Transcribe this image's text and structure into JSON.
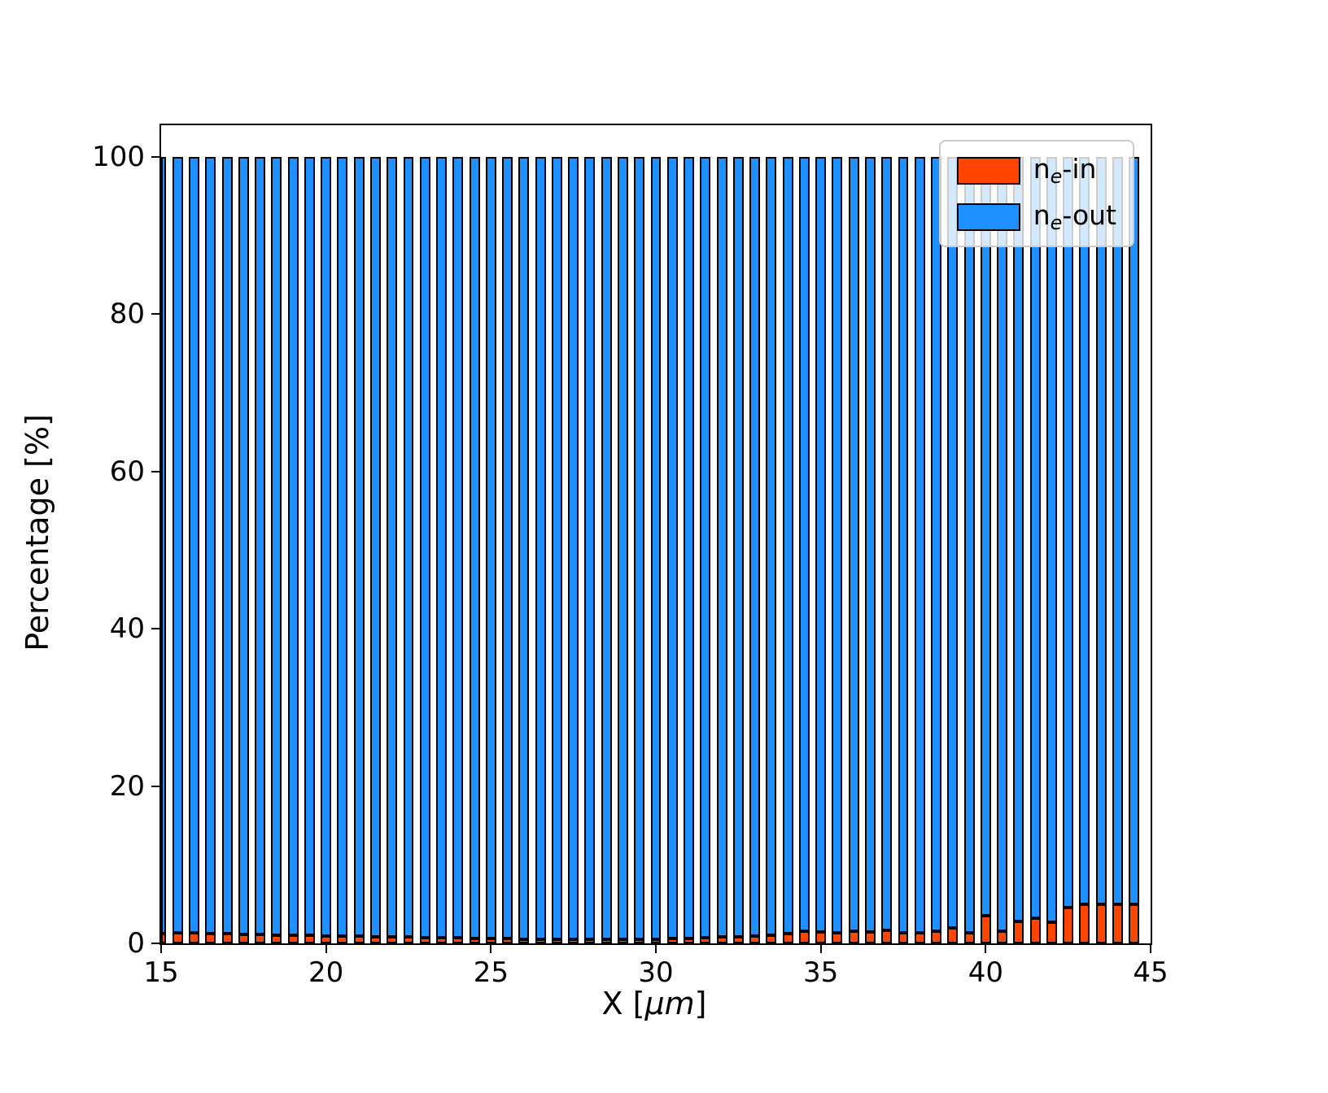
{
  "chart_data": {
    "type": "bar",
    "stacked": true,
    "x": [
      15.0,
      15.5,
      16.0,
      16.5,
      17.0,
      17.5,
      18.0,
      18.5,
      19.0,
      19.5,
      20.0,
      20.5,
      21.0,
      21.5,
      22.0,
      22.5,
      23.0,
      23.5,
      24.0,
      24.5,
      25.0,
      25.5,
      26.0,
      26.5,
      27.0,
      27.5,
      28.0,
      28.5,
      29.0,
      29.5,
      30.0,
      30.5,
      31.0,
      31.5,
      32.0,
      32.5,
      33.0,
      33.5,
      34.0,
      34.5,
      35.0,
      35.5,
      36.0,
      36.5,
      37.0,
      37.5,
      38.0,
      38.5,
      39.0,
      39.5,
      40.0,
      40.5,
      41.0,
      41.5,
      42.0,
      42.5,
      43.0,
      43.5,
      44.0,
      44.5
    ],
    "series": [
      {
        "name": "ne-in",
        "color": "#ff4500",
        "values": [
          1.2,
          1.3,
          1.3,
          1.2,
          1.2,
          1.1,
          1.1,
          1.0,
          1.0,
          1.0,
          0.9,
          0.9,
          0.9,
          0.8,
          0.8,
          0.8,
          0.7,
          0.7,
          0.7,
          0.6,
          0.6,
          0.6,
          0.5,
          0.5,
          0.5,
          0.5,
          0.5,
          0.5,
          0.5,
          0.5,
          0.5,
          0.6,
          0.6,
          0.7,
          0.8,
          0.8,
          0.9,
          1.0,
          1.2,
          1.5,
          1.4,
          1.3,
          1.5,
          1.4,
          1.7,
          1.3,
          1.3,
          1.5,
          2.0,
          1.3,
          3.5,
          1.6,
          2.8,
          3.2,
          2.7,
          4.5,
          5.0,
          5.0,
          5.0,
          5.0
        ]
      },
      {
        "name": "ne-out",
        "color": "#1e90ff",
        "values": [
          98.8,
          98.7,
          98.7,
          98.8,
          98.8,
          98.9,
          98.9,
          99.0,
          99.0,
          99.0,
          99.1,
          99.1,
          99.1,
          99.2,
          99.2,
          99.2,
          99.3,
          99.3,
          99.3,
          99.4,
          99.4,
          99.4,
          99.5,
          99.5,
          99.5,
          99.5,
          99.5,
          99.5,
          99.5,
          99.5,
          99.5,
          99.4,
          99.4,
          99.3,
          99.2,
          99.2,
          99.1,
          99.0,
          98.8,
          98.5,
          98.6,
          98.7,
          98.5,
          98.6,
          98.3,
          98.7,
          98.7,
          98.5,
          98.0,
          98.7,
          96.5,
          98.4,
          97.2,
          96.8,
          97.3,
          95.5,
          95.0,
          95.0,
          95.0,
          95.0
        ]
      }
    ],
    "bar_width": 0.32,
    "edge_color": "#000000",
    "xlabel": {
      "prefix": "X  [",
      "italic": "μm",
      "suffix": "]"
    },
    "ylabel": "Percentage  [%]",
    "xlim": [
      15,
      45
    ],
    "ylim": [
      0,
      104
    ],
    "xticks": [
      15,
      20,
      25,
      30,
      35,
      40,
      45
    ],
    "yticks": [
      0,
      20,
      40,
      60,
      80,
      100
    ],
    "grid": false,
    "legend": {
      "position": "upper right",
      "entries": [
        {
          "base": "n",
          "sub": "e",
          "suffix": "-in",
          "color": "#ff4500"
        },
        {
          "base": "n",
          "sub": "e",
          "suffix": "-out",
          "color": "#1e90ff"
        }
      ]
    }
  }
}
